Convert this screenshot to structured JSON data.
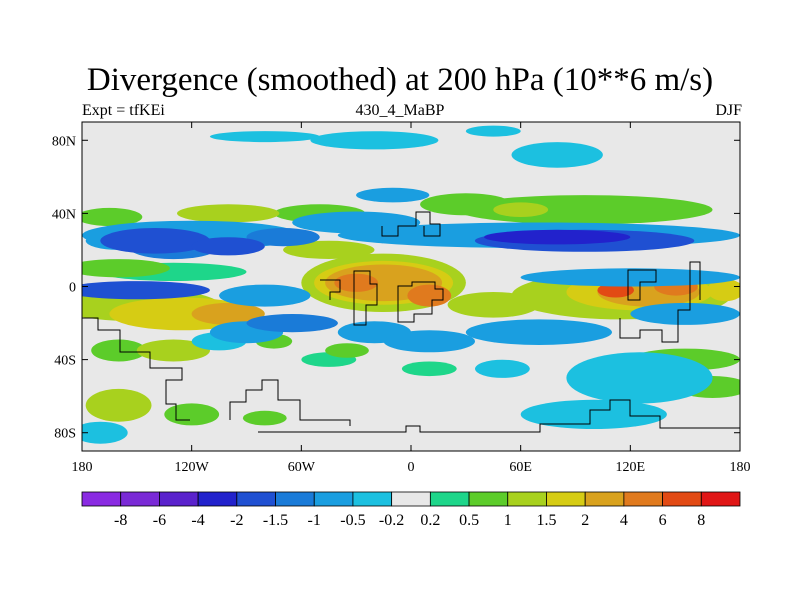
{
  "chart_data": {
    "type": "heatmap",
    "title": "Divergence (smoothed) at 200 hPa (10**6 m/s)",
    "subtitle_left": "Expt = tfKEi",
    "subtitle_center": "430_4_MaBP",
    "subtitle_right": "DJF",
    "xlim": [
      -180,
      180
    ],
    "ylim": [
      -90,
      90
    ],
    "x_ticks": [
      {
        "value": -180,
        "label": "180"
      },
      {
        "value": -120,
        "label": "120W"
      },
      {
        "value": -60,
        "label": "60W"
      },
      {
        "value": 0,
        "label": "0"
      },
      {
        "value": 60,
        "label": "60E"
      },
      {
        "value": 120,
        "label": "120E"
      },
      {
        "value": 180,
        "label": "180"
      }
    ],
    "y_ticks": [
      {
        "value": 80,
        "label": "80N"
      },
      {
        "value": 40,
        "label": "40N"
      },
      {
        "value": 0,
        "label": "0"
      },
      {
        "value": -40,
        "label": "40S"
      },
      {
        "value": -80,
        "label": "80S"
      }
    ],
    "colorbar": {
      "colors": [
        "#8a2be2",
        "#7a2ad6",
        "#5a22cc",
        "#2222cc",
        "#1f50d2",
        "#1a7bd8",
        "#1a9ee0",
        "#1cc0e0",
        "#e8e8e8",
        "#1ed68a",
        "#5ccc2a",
        "#a8d11e",
        "#d6cc14",
        "#d9a21e",
        "#e07a1e",
        "#e24a14",
        "#e01616"
      ],
      "labels": [
        "-8",
        "-6",
        "-4",
        "-2",
        "-1.5",
        "-1",
        "-0.5",
        "-0.2",
        "0.2",
        "0.5",
        "1",
        "1.5",
        "2",
        "4",
        "6",
        "8"
      ]
    },
    "blobs": [
      {
        "lon": -165,
        "lat": 38,
        "rx": 18,
        "ry": 5,
        "level": 10
      },
      {
        "lon": -100,
        "lat": 40,
        "rx": 28,
        "ry": 5,
        "level": 11
      },
      {
        "lon": -50,
        "lat": 40,
        "rx": 25,
        "ry": 5,
        "level": 10
      },
      {
        "lon": -45,
        "lat": 20,
        "rx": 25,
        "ry": 5,
        "level": 11
      },
      {
        "lon": 95,
        "lat": 42,
        "rx": 70,
        "ry": 8,
        "level": 10
      },
      {
        "lon": 30,
        "lat": 45,
        "rx": 25,
        "ry": 6,
        "level": 10
      },
      {
        "lon": 60,
        "lat": 42,
        "rx": 15,
        "ry": 4,
        "level": 11
      },
      {
        "lon": -160,
        "lat": 10,
        "rx": 28,
        "ry": 5,
        "level": 10
      },
      {
        "lon": -130,
        "lat": 8,
        "rx": 40,
        "ry": 5,
        "level": 9
      },
      {
        "lon": -150,
        "lat": -10,
        "rx": 45,
        "ry": 9,
        "level": 11
      },
      {
        "lon": -125,
        "lat": -15,
        "rx": 40,
        "ry": 9,
        "level": 12
      },
      {
        "lon": -100,
        "lat": -15,
        "rx": 20,
        "ry": 6,
        "level": 13
      },
      {
        "lon": -15,
        "lat": 2,
        "rx": 45,
        "ry": 16,
        "level": 11
      },
      {
        "lon": -15,
        "lat": 2,
        "rx": 38,
        "ry": 12,
        "level": 12
      },
      {
        "lon": -15,
        "lat": 2,
        "rx": 32,
        "ry": 10,
        "level": 13
      },
      {
        "lon": -30,
        "lat": 2,
        "rx": 12,
        "ry": 5,
        "level": 14
      },
      {
        "lon": 10,
        "lat": -5,
        "rx": 12,
        "ry": 6,
        "level": 14
      },
      {
        "lon": 45,
        "lat": -10,
        "rx": 25,
        "ry": 7,
        "level": 11
      },
      {
        "lon": 115,
        "lat": -5,
        "rx": 60,
        "ry": 13,
        "level": 11
      },
      {
        "lon": 125,
        "lat": -3,
        "rx": 40,
        "ry": 10,
        "level": 12
      },
      {
        "lon": 130,
        "lat": -3,
        "rx": 28,
        "ry": 8,
        "level": 13
      },
      {
        "lon": 112,
        "lat": -2,
        "rx": 10,
        "ry": 4,
        "level": 15
      },
      {
        "lon": 145,
        "lat": 0,
        "rx": 12,
        "ry": 5,
        "level": 14
      },
      {
        "lon": 172,
        "lat": -2,
        "rx": 10,
        "ry": 6,
        "level": 12
      },
      {
        "lon": -130,
        "lat": -35,
        "rx": 20,
        "ry": 6,
        "level": 11
      },
      {
        "lon": -160,
        "lat": -35,
        "rx": 15,
        "ry": 6,
        "level": 10
      },
      {
        "lon": -35,
        "lat": -35,
        "rx": 12,
        "ry": 4,
        "level": 10
      },
      {
        "lon": -75,
        "lat": -30,
        "rx": 10,
        "ry": 4,
        "level": 10
      },
      {
        "lon": -45,
        "lat": -40,
        "rx": 15,
        "ry": 4,
        "level": 9
      },
      {
        "lon": -160,
        "lat": -65,
        "rx": 18,
        "ry": 9,
        "level": 11
      },
      {
        "lon": -120,
        "lat": -70,
        "rx": 15,
        "ry": 6,
        "level": 10
      },
      {
        "lon": -80,
        "lat": -72,
        "rx": 12,
        "ry": 4,
        "level": 10
      },
      {
        "lon": 10,
        "lat": -45,
        "rx": 15,
        "ry": 4,
        "level": 9
      },
      {
        "lon": 150,
        "lat": -40,
        "rx": 30,
        "ry": 6,
        "level": 10
      },
      {
        "lon": 165,
        "lat": -55,
        "rx": 20,
        "ry": 6,
        "level": 10
      },
      {
        "lon": -150,
        "lat": -2,
        "rx": 40,
        "ry": 5,
        "level": 4
      },
      {
        "lon": -130,
        "lat": 22,
        "rx": 25,
        "ry": 7,
        "level": 5
      },
      {
        "lon": -160,
        "lat": 25,
        "rx": 18,
        "ry": 5,
        "level": 6
      },
      {
        "lon": -120,
        "lat": 28,
        "rx": 60,
        "ry": 8,
        "level": 6
      },
      {
        "lon": -140,
        "lat": 25,
        "rx": 30,
        "ry": 7,
        "level": 4
      },
      {
        "lon": -100,
        "lat": 22,
        "rx": 20,
        "ry": 5,
        "level": 4
      },
      {
        "lon": -70,
        "lat": 27,
        "rx": 20,
        "ry": 5,
        "level": 5
      },
      {
        "lon": -30,
        "lat": 35,
        "rx": 35,
        "ry": 6,
        "level": 6
      },
      {
        "lon": -10,
        "lat": 50,
        "rx": 20,
        "ry": 4,
        "level": 6
      },
      {
        "lon": 70,
        "lat": 28,
        "rx": 110,
        "ry": 7,
        "level": 6
      },
      {
        "lon": 95,
        "lat": 25,
        "rx": 60,
        "ry": 6,
        "level": 4
      },
      {
        "lon": 80,
        "lat": 27,
        "rx": 40,
        "ry": 4,
        "level": 3
      },
      {
        "lon": 120,
        "lat": 5,
        "rx": 60,
        "ry": 5,
        "level": 6
      },
      {
        "lon": -80,
        "lat": -5,
        "rx": 25,
        "ry": 6,
        "level": 6
      },
      {
        "lon": -65,
        "lat": -20,
        "rx": 25,
        "ry": 5,
        "level": 5
      },
      {
        "lon": -90,
        "lat": -25,
        "rx": 20,
        "ry": 6,
        "level": 6
      },
      {
        "lon": -105,
        "lat": -30,
        "rx": 15,
        "ry": 5,
        "level": 7
      },
      {
        "lon": -20,
        "lat": -25,
        "rx": 20,
        "ry": 6,
        "level": 6
      },
      {
        "lon": 10,
        "lat": -30,
        "rx": 25,
        "ry": 6,
        "level": 6
      },
      {
        "lon": 70,
        "lat": -25,
        "rx": 40,
        "ry": 7,
        "level": 6
      },
      {
        "lon": 150,
        "lat": -15,
        "rx": 30,
        "ry": 6,
        "level": 6
      },
      {
        "lon": -20,
        "lat": 80,
        "rx": 35,
        "ry": 5,
        "level": 7
      },
      {
        "lon": -80,
        "lat": 82,
        "rx": 30,
        "ry": 3,
        "level": 7
      },
      {
        "lon": 80,
        "lat": 72,
        "rx": 25,
        "ry": 7,
        "level": 7
      },
      {
        "lon": 45,
        "lat": 85,
        "rx": 15,
        "ry": 3,
        "level": 7
      },
      {
        "lon": 125,
        "lat": -50,
        "rx": 40,
        "ry": 14,
        "level": 7
      },
      {
        "lon": 100,
        "lat": -70,
        "rx": 40,
        "ry": 8,
        "level": 7
      },
      {
        "lon": -170,
        "lat": -80,
        "rx": 15,
        "ry": 6,
        "level": 7
      },
      {
        "lon": 50,
        "lat": -45,
        "rx": 15,
        "ry": 5,
        "level": 7
      }
    ]
  }
}
